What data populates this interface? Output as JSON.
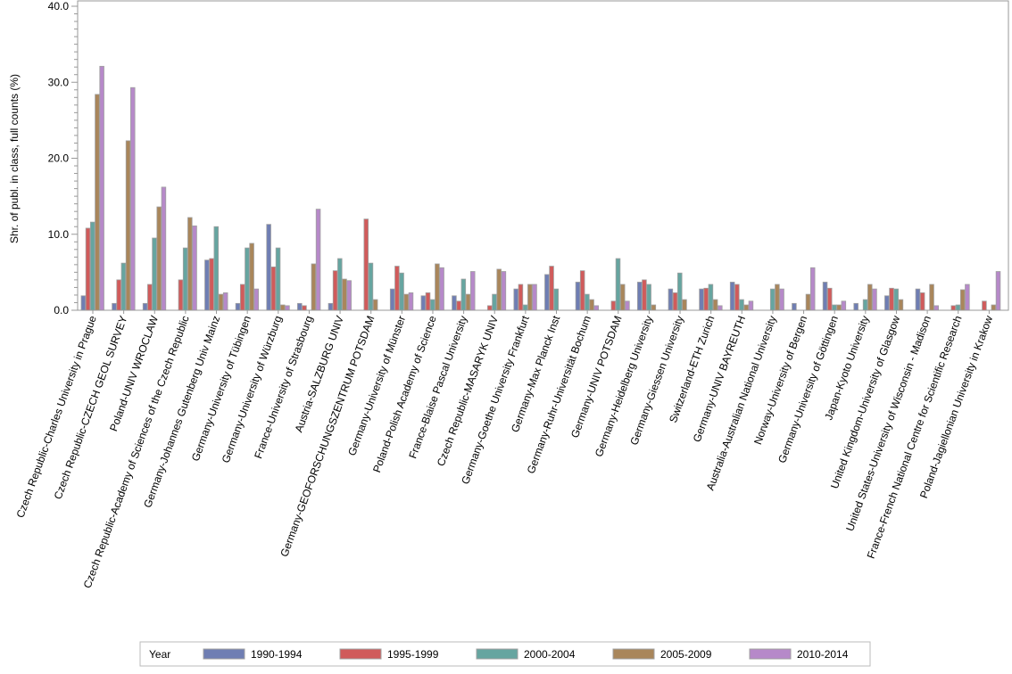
{
  "chart_data": {
    "type": "bar",
    "title": "",
    "xlabel": "",
    "ylabel": "Shr. of publ. in class, full counts (%)",
    "ylim": [
      0,
      40
    ],
    "yticks": [
      "0.0",
      "10.0",
      "20.0",
      "30.0",
      "40.0"
    ],
    "legend": {
      "title": "Year",
      "placement": "bottom"
    },
    "categories": [
      "Czech Republic-Charles University in Prague",
      "Czech Republic-CZECH GEOL SURVEY",
      "Poland-UNIV WROCLAW",
      "Czech Republic-Academy of Sciences of the Czech Republic",
      "Germany-Johannes Gutenberg Univ Mainz",
      "Germany-University of Tübingen",
      "Germany-University of Würzburg",
      "France-University of Strasbourg",
      "Austria-SALZBURG UNIV",
      "Germany-GEOFORSCHUNGSZENTRUM POTSDAM",
      "Germany-University of Münster",
      "Poland-Polish Academy of Science",
      "France-Blaise Pascal University",
      "Czech Republic-MASARYK UNIV",
      "Germany-Goethe University Frankfurt",
      "Germany-Max Planck Inst",
      "Germany-Ruhr-Universität Bochum",
      "Germany-UNIV POTSDAM",
      "Germany-Heidelberg University",
      "Germany-Giessen University",
      "Switzerland-ETH Zurich",
      "Germany-UNIV BAYREUTH",
      "Australia-Australian National University",
      "Norway-University of Bergen",
      "Germany-University of Göttingen",
      "Japan-Kyoto University",
      "United Kingdom-University of Glasgow",
      "United States-University of Wisconsin - Madison",
      "France-French National Centre for Scientific Research",
      "Poland-Jagiellonian University in Krakow"
    ],
    "series": [
      {
        "name": "1990-1994",
        "color": "#6f7eb3",
        "values": [
          1.9,
          0.9,
          0.9,
          0,
          6.6,
          0.9,
          11.3,
          0.9,
          0.9,
          0,
          2.8,
          1.9,
          1.9,
          0,
          2.8,
          4.7,
          3.7,
          0,
          3.7,
          2.8,
          2.8,
          3.7,
          0,
          0.9,
          3.7,
          0.9,
          1.9,
          2.8,
          0,
          0
        ]
      },
      {
        "name": "1995-1999",
        "color": "#d05b5b",
        "values": [
          10.8,
          4.0,
          3.4,
          4.0,
          6.8,
          3.4,
          5.7,
          0.6,
          5.2,
          12.0,
          5.8,
          2.3,
          1.2,
          0.6,
          3.4,
          5.8,
          5.2,
          1.2,
          4.0,
          2.3,
          2.9,
          3.4,
          0,
          0,
          2.9,
          0,
          2.9,
          2.3,
          0.6,
          1.2
        ]
      },
      {
        "name": "2000-2004",
        "color": "#66a5a0",
        "values": [
          11.6,
          6.2,
          9.5,
          8.2,
          11.0,
          8.2,
          8.2,
          0,
          6.8,
          6.2,
          4.9,
          1.4,
          4.1,
          2.1,
          0.7,
          2.8,
          2.1,
          6.8,
          3.4,
          4.9,
          3.4,
          1.4,
          2.8,
          0,
          0.7,
          1.4,
          2.8,
          0,
          0.7,
          0
        ]
      },
      {
        "name": "2005-2009",
        "color": "#a9865b",
        "values": [
          28.4,
          22.3,
          13.6,
          12.2,
          2.1,
          8.8,
          0.7,
          6.1,
          4.1,
          1.4,
          2.1,
          6.1,
          2.1,
          5.4,
          3.4,
          0,
          1.4,
          3.4,
          0.7,
          1.4,
          1.4,
          0.7,
          3.4,
          2.1,
          0.7,
          3.4,
          1.4,
          3.4,
          2.7,
          0.7
        ]
      },
      {
        "name": "2010-2014",
        "color": "#b689c9",
        "values": [
          32.1,
          29.3,
          16.2,
          11.1,
          2.3,
          2.8,
          0.6,
          13.3,
          3.9,
          0,
          2.3,
          5.6,
          5.1,
          5.1,
          3.4,
          0,
          0.6,
          1.2,
          0,
          0,
          0.6,
          1.2,
          2.8,
          5.6,
          1.2,
          2.8,
          0,
          0.6,
          3.4,
          5.1
        ]
      }
    ]
  }
}
